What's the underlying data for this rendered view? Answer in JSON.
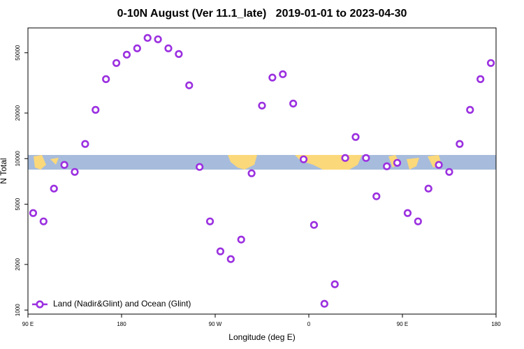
{
  "chart_data": {
    "type": "scatter",
    "title": "0-10N August (Ver 11.1_late)   2019-01-01 to 2023-04-30",
    "xlabel": "Longitude (deg E)",
    "ylabel": "N Total",
    "xlim": [
      90,
      540
    ],
    "xticks": [
      {
        "value": 90,
        "label": "90 E"
      },
      180,
      {
        "value": 270,
        "label": "90 W"
      },
      {
        "value": 360,
        "label": "0"
      },
      {
        "value": 450,
        "label": "90 E"
      },
      {
        "value": 540,
        "label": "180"
      }
    ],
    "ylim": [
      940,
      73000
    ],
    "yscale": "log",
    "yticks": [
      1000,
      2000,
      5000,
      10000,
      20000,
      50000
    ],
    "legend": "lower left",
    "series": [
      {
        "name": "Land (Nadir&Glint) and Ocean (Glint)",
        "color": "#9b30e0",
        "x": [
          95,
          105,
          115,
          125,
          135,
          145,
          155,
          165,
          175,
          185,
          195,
          205,
          215,
          225,
          235,
          245,
          255,
          265,
          275,
          285,
          295,
          305,
          315,
          325,
          335,
          345,
          355,
          365,
          375,
          385,
          395,
          405,
          415,
          425,
          435,
          445,
          455,
          465,
          475,
          485,
          495,
          505,
          515,
          525,
          535
        ],
        "values": [
          4370,
          3850,
          6340,
          9090,
          8170,
          12500,
          21000,
          33500,
          42800,
          48600,
          53500,
          62700,
          61400,
          53500,
          49100,
          30500,
          8810,
          3850,
          2440,
          2170,
          2920,
          8000,
          22400,
          34300,
          36100,
          23100,
          9890,
          3650,
          1100,
          1480,
          10100,
          13900,
          10100,
          5640,
          8900,
          9380,
          4370,
          3850,
          6340,
          9090,
          8170,
          12500,
          21000,
          33500,
          42800
        ]
      }
    ]
  }
}
